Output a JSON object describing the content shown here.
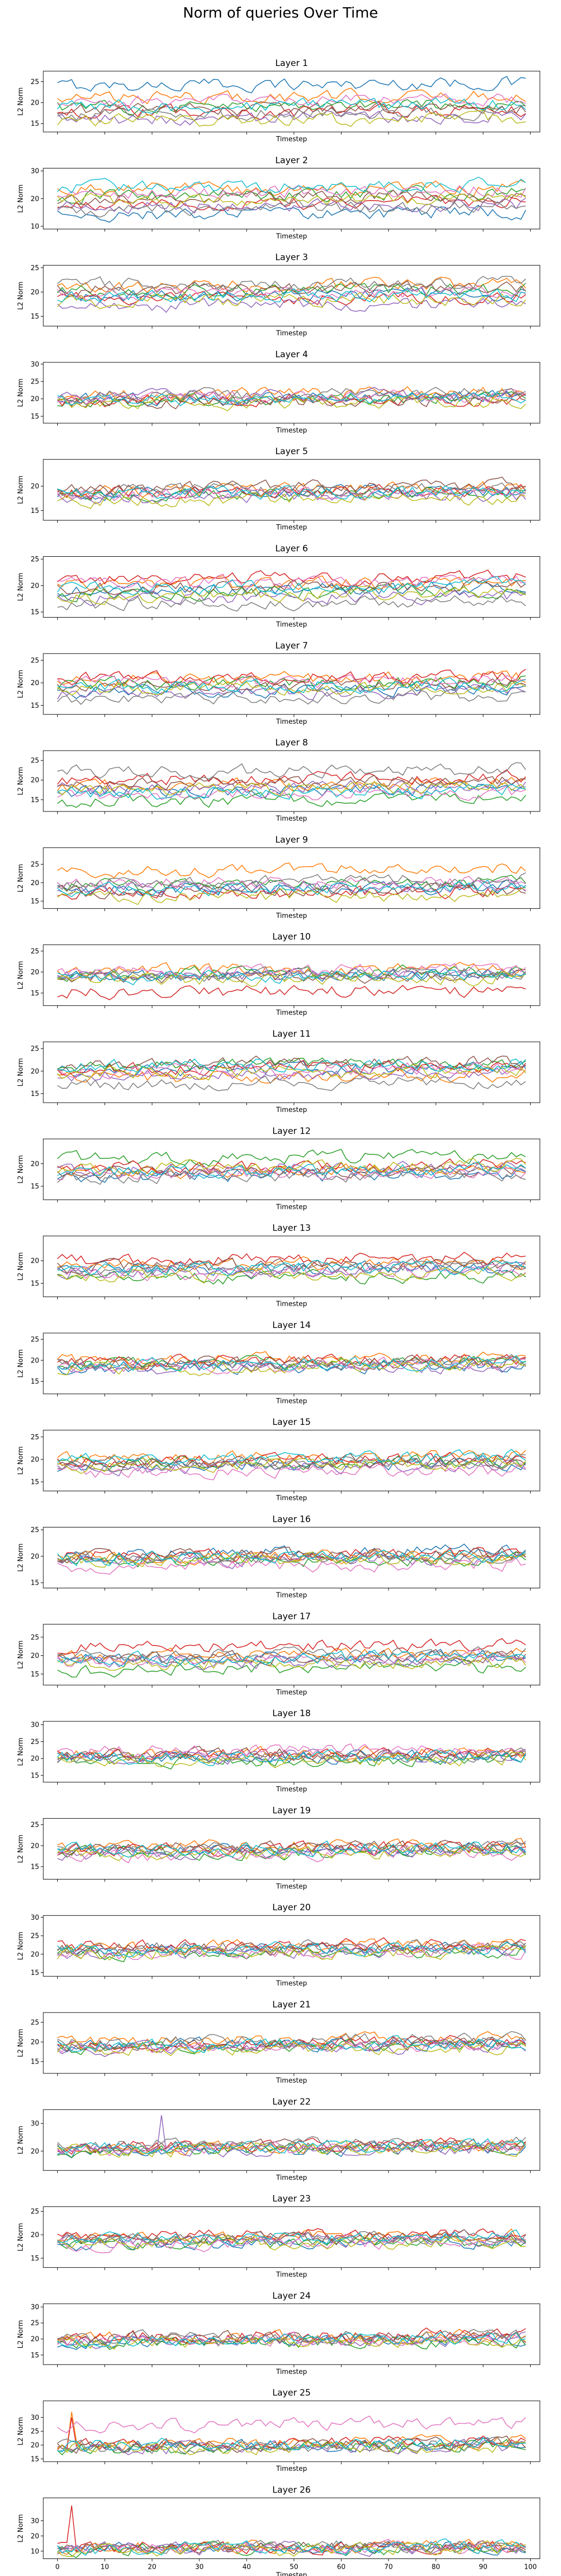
{
  "figure": {
    "title": "Norm of queries Over Time"
  },
  "chart_data": [
    {
      "type": "line",
      "title": "Layer 1",
      "xlabel": "Timestep",
      "ylabel": "L2 Norm",
      "ylim": [
        13,
        27.5
      ],
      "yticks": [
        15,
        20,
        25
      ],
      "x_tick_labels": [],
      "series_means": [
        24,
        21,
        19,
        17.5,
        16,
        18,
        20,
        17,
        15.5,
        19
      ]
    },
    {
      "type": "line",
      "title": "Layer 2",
      "xlabel": "Timestep",
      "ylabel": "L2 Norm",
      "ylim": [
        9,
        31
      ],
      "yticks": [
        10,
        20,
        30
      ],
      "x_tick_labels": [],
      "series_means": [
        14,
        23,
        21,
        18,
        17,
        20,
        22,
        16,
        19,
        24
      ]
    },
    {
      "type": "line",
      "title": "Layer 3",
      "xlabel": "Timestep",
      "ylabel": "L2 Norm",
      "ylim": [
        13,
        25.5
      ],
      "yticks": [
        15,
        20,
        25
      ],
      "x_tick_labels": [],
      "series_means": [
        19,
        21,
        20,
        18.5,
        17,
        20.5,
        19.5,
        21.5,
        18,
        19
      ]
    },
    {
      "type": "line",
      "title": "Layer 4",
      "xlabel": "Timestep",
      "ylabel": "L2 Norm",
      "ylim": [
        13,
        30.5
      ],
      "yticks": [
        15,
        20,
        25,
        30
      ],
      "x_tick_labels": [],
      "series_means": [
        20,
        21,
        19.5,
        19,
        20.5,
        19,
        20,
        21,
        18.5,
        19.5
      ]
    },
    {
      "type": "line",
      "title": "Layer 5",
      "xlabel": "Timestep",
      "ylabel": "L2 Norm",
      "ylim": [
        13,
        25.5
      ],
      "yticks": [
        15,
        20
      ],
      "x_tick_labels": [],
      "series_means": [
        18.5,
        19,
        18,
        18.5,
        17.5,
        19.5,
        18,
        19,
        17,
        18.5
      ]
    },
    {
      "type": "line",
      "title": "Layer 6",
      "xlabel": "Timestep",
      "ylabel": "L2 Norm",
      "ylim": [
        14,
        25.5
      ],
      "yticks": [
        15,
        20,
        25
      ],
      "x_tick_labels": [],
      "series_means": [
        19,
        20,
        18.5,
        21,
        17.5,
        19.5,
        20.5,
        16.5,
        18,
        19.5
      ]
    },
    {
      "type": "line",
      "title": "Layer 7",
      "xlabel": "Timestep",
      "ylabel": "L2 Norm",
      "ylim": [
        13,
        26.5
      ],
      "yticks": [
        15,
        20,
        25
      ],
      "x_tick_labels": [],
      "series_means": [
        18,
        20.5,
        19.5,
        21,
        17.5,
        19,
        20,
        16.5,
        18.5,
        19
      ]
    },
    {
      "type": "line",
      "title": "Layer 8",
      "xlabel": "Timestep",
      "ylabel": "L2 Norm",
      "ylim": [
        12,
        27.5
      ],
      "yticks": [
        15,
        20,
        25
      ],
      "x_tick_labels": [],
      "series_means": [
        17,
        18.5,
        14.5,
        20,
        18,
        19,
        16,
        22,
        17.5,
        16.5
      ]
    },
    {
      "type": "line",
      "title": "Layer 9",
      "xlabel": "Timestep",
      "ylabel": "L2 Norm",
      "ylim": [
        13,
        29.5
      ],
      "yticks": [
        15,
        20,
        25
      ],
      "x_tick_labels": [],
      "series_means": [
        18,
        23,
        19,
        17,
        18.5,
        17.5,
        19.5,
        20,
        16,
        18
      ]
    },
    {
      "type": "line",
      "title": "Layer 10",
      "xlabel": "Timestep",
      "ylabel": "L2 Norm",
      "ylim": [
        12,
        26.5
      ],
      "yticks": [
        15,
        20,
        25
      ],
      "x_tick_labels": [],
      "series_means": [
        19,
        20,
        19.5,
        15,
        19,
        18.5,
        20,
        19,
        18,
        18.5
      ]
    },
    {
      "type": "line",
      "title": "Layer 11",
      "xlabel": "Timestep",
      "ylabel": "L2 Norm",
      "ylim": [
        13,
        26.5
      ],
      "yticks": [
        15,
        20,
        25
      ],
      "x_tick_labels": [],
      "series_means": [
        20,
        18.5,
        21,
        20.5,
        19,
        21.5,
        20,
        17,
        19.5,
        21
      ]
    },
    {
      "type": "line",
      "title": "Layer 12",
      "xlabel": "Timestep",
      "ylabel": "L2 Norm",
      "ylim": [
        12,
        25.5
      ],
      "yticks": [
        15,
        20
      ],
      "x_tick_labels": [],
      "series_means": [
        17,
        18,
        21,
        19,
        18.5,
        18,
        17.5,
        17,
        19,
        18
      ]
    },
    {
      "type": "line",
      "title": "Layer 13",
      "xlabel": "Timestep",
      "ylabel": "L2 Norm",
      "ylim": [
        12,
        25.5
      ],
      "yticks": [
        15,
        20
      ],
      "x_tick_labels": [],
      "series_means": [
        18,
        19,
        16,
        20,
        17.5,
        18.5,
        17,
        18,
        16.5,
        18
      ]
    },
    {
      "type": "line",
      "title": "Layer 14",
      "xlabel": "Timestep",
      "ylabel": "L2 Norm",
      "ylim": [
        12,
        26.5
      ],
      "yticks": [
        15,
        20,
        25
      ],
      "x_tick_labels": [],
      "series_means": [
        18,
        20,
        19,
        19.5,
        18,
        19,
        18.5,
        19,
        18,
        19
      ]
    },
    {
      "type": "line",
      "title": "Layer 15",
      "xlabel": "Timestep",
      "ylabel": "L2 Norm",
      "ylim": [
        13,
        26.5
      ],
      "yticks": [
        15,
        20,
        25
      ],
      "x_tick_labels": [],
      "series_means": [
        18.5,
        20,
        19,
        19.5,
        18,
        19,
        17,
        19,
        18.5,
        20
      ]
    },
    {
      "type": "line",
      "title": "Layer 16",
      "xlabel": "Timestep",
      "ylabel": "L2 Norm",
      "ylim": [
        14,
        25.5
      ],
      "yticks": [
        15,
        20,
        25
      ],
      "x_tick_labels": [],
      "series_means": [
        20.5,
        19.5,
        19,
        20,
        19,
        20,
        18,
        19.5,
        19,
        19.5
      ]
    },
    {
      "type": "line",
      "title": "Layer 17",
      "xlabel": "Timestep",
      "ylabel": "L2 Norm",
      "ylim": [
        12,
        28.5
      ],
      "yticks": [
        15,
        20,
        25
      ],
      "x_tick_labels": [],
      "series_means": [
        19,
        20,
        16,
        22,
        18,
        19,
        18.5,
        20,
        17.5,
        19
      ]
    },
    {
      "type": "line",
      "title": "Layer 18",
      "xlabel": "Timestep",
      "ylabel": "L2 Norm",
      "ylim": [
        13,
        31
      ],
      "yticks": [
        15,
        20,
        25,
        30
      ],
      "x_tick_labels": [],
      "series_means": [
        20,
        21,
        19,
        21,
        20,
        21,
        22,
        20,
        19,
        20
      ]
    },
    {
      "type": "line",
      "title": "Layer 19",
      "xlabel": "Timestep",
      "ylabel": "L2 Norm",
      "ylim": [
        12,
        26.5
      ],
      "yticks": [
        15,
        20,
        25
      ],
      "x_tick_labels": [],
      "series_means": [
        18.5,
        19.5,
        18,
        19,
        18,
        19,
        17.5,
        19,
        18,
        19
      ]
    },
    {
      "type": "line",
      "title": "Layer 20",
      "xlabel": "Timestep",
      "ylabel": "L2 Norm",
      "ylim": [
        14,
        30.5
      ],
      "yticks": [
        15,
        20,
        25,
        30
      ],
      "x_tick_labels": [],
      "series_means": [
        21,
        22,
        20,
        22,
        20.5,
        21,
        20,
        21.5,
        20,
        21
      ]
    },
    {
      "type": "line",
      "title": "Layer 21",
      "xlabel": "Timestep",
      "ylabel": "L2 Norm",
      "ylim": [
        12,
        27.5
      ],
      "yticks": [
        15,
        20,
        25
      ],
      "x_tick_labels": [],
      "series_means": [
        19,
        20,
        18.5,
        19.5,
        18,
        19,
        18.5,
        20,
        18,
        19
      ]
    },
    {
      "type": "line",
      "title": "Layer 22",
      "xlabel": "Timestep",
      "ylabel": "L2 Norm",
      "ylim": [
        13,
        35
      ],
      "yticks": [
        20,
        30
      ],
      "x_tick_labels": [],
      "series_means": [
        20,
        21,
        20,
        21.5,
        20,
        21,
        20.5,
        22,
        20,
        21
      ]
    },
    {
      "type": "line",
      "title": "Layer 23",
      "xlabel": "Timestep",
      "ylabel": "L2 Norm",
      "ylim": [
        13,
        26
      ],
      "yticks": [
        15,
        20,
        25
      ],
      "x_tick_labels": [],
      "series_means": [
        18,
        19.5,
        18,
        19.5,
        18.5,
        19,
        18,
        19,
        18,
        19
      ]
    },
    {
      "type": "line",
      "title": "Layer 24",
      "xlabel": "Timestep",
      "ylabel": "L2 Norm",
      "ylim": [
        12,
        31
      ],
      "yticks": [
        15,
        20,
        25,
        30
      ],
      "x_tick_labels": [],
      "series_means": [
        19,
        20,
        18.5,
        20.5,
        19,
        20,
        19,
        20,
        18.5,
        19.5
      ]
    },
    {
      "type": "line",
      "title": "Layer 25",
      "xlabel": "Timestep",
      "ylabel": "L2 Norm",
      "ylim": [
        14,
        36
      ],
      "yticks": [
        15,
        20,
        25,
        30
      ],
      "x_tick_labels": [],
      "series_means": [
        19,
        20,
        18.5,
        20,
        18.5,
        19.5,
        27,
        19,
        18.5,
        20
      ]
    },
    {
      "type": "line",
      "title": "Layer 26",
      "xlabel": "Timestep",
      "ylabel": "L2 Norm",
      "ylim": [
        5,
        45
      ],
      "yticks": [
        10,
        20,
        30
      ],
      "x_tick_labels": [
        "0",
        "10",
        "20",
        "30",
        "40",
        "50",
        "60",
        "70",
        "80",
        "90",
        "100"
      ],
      "series_means": [
        11,
        12,
        10.5,
        12,
        11,
        11.5,
        11,
        12,
        10.5,
        11
      ]
    }
  ],
  "shared": {
    "xlim": [
      -3,
      102
    ],
    "x_ticks": [
      0,
      10,
      20,
      30,
      40,
      50,
      60,
      70,
      80,
      90,
      100
    ],
    "n_timesteps": 100,
    "colors": [
      "#1f77b4",
      "#ff7f0e",
      "#2ca02c",
      "#d62728",
      "#9467bd",
      "#8c564b",
      "#e377c2",
      "#7f7f7f",
      "#bcbd22",
      "#17becf"
    ]
  }
}
